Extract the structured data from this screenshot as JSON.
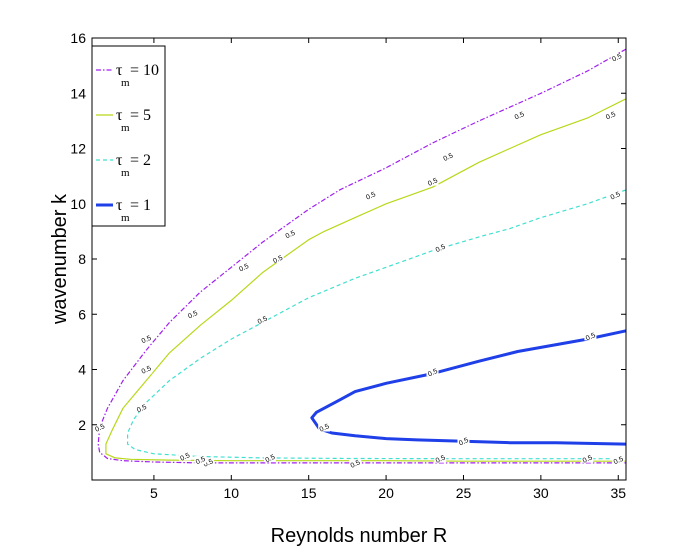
{
  "chart_data": {
    "type": "line",
    "title": "",
    "xlabel": "Reynolds number R",
    "ylabel": "wavenumber k",
    "xlim": [
      1,
      35.5
    ],
    "ylim": [
      0,
      16
    ],
    "xticks": [
      5,
      10,
      15,
      20,
      25,
      30,
      35
    ],
    "yticks": [
      2,
      4,
      6,
      8,
      10,
      12,
      14,
      16
    ],
    "xtick_labels": [
      "5",
      "10",
      "15",
      "20",
      "25",
      "30",
      "35"
    ],
    "ytick_labels": [
      "2",
      "4",
      "6",
      "8",
      "10",
      "12",
      "14",
      "16"
    ],
    "grid": false,
    "legend_position": "top-left",
    "contour_level_label": "0.5",
    "series": [
      {
        "name_main": "τ",
        "name_sub": "m",
        "name_rest": "= 10",
        "color": "#a020f0",
        "style": "dashdot",
        "width": 1.2,
        "x": [
          35.5,
          33,
          30,
          28,
          26,
          23,
          20,
          17,
          15,
          13,
          12,
          10,
          8,
          6,
          4.5,
          3,
          2,
          1.5,
          1.4,
          1.5,
          2,
          3,
          5,
          8,
          12,
          18,
          25,
          30,
          35.5
        ],
        "y": [
          15.6,
          14.8,
          14.0,
          13.5,
          13.0,
          12.2,
          11.3,
          10.5,
          9.8,
          9.0,
          8.6,
          7.7,
          6.8,
          5.7,
          4.7,
          3.6,
          2.6,
          1.9,
          1.3,
          1.0,
          0.78,
          0.7,
          0.65,
          0.62,
          0.62,
          0.62,
          0.62,
          0.62,
          0.62
        ],
        "labels": [
          [
            34.9,
            15.3
          ],
          [
            28.6,
            13.2
          ],
          [
            24.0,
            11.7
          ],
          [
            19.0,
            10.3
          ],
          [
            13.8,
            8.9
          ],
          [
            10.8,
            7.7
          ],
          [
            4.5,
            5.1
          ],
          [
            1.5,
            1.9
          ],
          [
            8.5,
            0.63
          ],
          [
            18.0,
            0.59
          ]
        ]
      },
      {
        "name_main": "τ",
        "name_sub": "m",
        "name_rest": "= 5",
        "color": "#b8d81a",
        "style": "solid",
        "width": 1.2,
        "x": [
          35.5,
          33,
          30,
          28,
          26,
          23,
          20,
          18,
          16,
          15,
          13,
          12,
          10,
          8,
          6,
          4.5,
          3,
          2.3,
          1.9,
          1.9,
          2.5,
          3.5,
          6,
          10,
          15,
          20,
          25,
          30,
          35.5
        ],
        "y": [
          13.8,
          13.1,
          12.5,
          12.0,
          11.5,
          10.6,
          10.0,
          9.5,
          9.0,
          8.7,
          7.9,
          7.5,
          6.5,
          5.6,
          4.6,
          3.6,
          2.6,
          1.8,
          1.3,
          0.95,
          0.8,
          0.75,
          0.72,
          0.7,
          0.7,
          0.7,
          0.68,
          0.68,
          0.68
        ],
        "labels": [
          [
            34.5,
            13.2
          ],
          [
            23.0,
            10.8
          ],
          [
            13.0,
            8.0
          ],
          [
            7.5,
            6.0
          ],
          [
            4.5,
            4.0
          ],
          [
            8.0,
            0.72
          ],
          [
            35.0,
            0.72
          ]
        ]
      },
      {
        "name_main": "τ",
        "name_sub": "m",
        "name_rest": "= 2",
        "color": "#40e0d0",
        "style": "dashed",
        "width": 1.2,
        "x": [
          35.5,
          33,
          30,
          28,
          26,
          23,
          20,
          18,
          15,
          13,
          10,
          8,
          6,
          4.5,
          3.7,
          3.3,
          3.3,
          3.8,
          5,
          8,
          12,
          18,
          25,
          30,
          35.5
        ],
        "y": [
          10.5,
          10.0,
          9.5,
          9.1,
          8.8,
          8.3,
          7.7,
          7.3,
          6.6,
          6.0,
          5.1,
          4.4,
          3.6,
          2.8,
          2.2,
          1.7,
          1.3,
          1.1,
          0.95,
          0.85,
          0.8,
          0.78,
          0.77,
          0.77,
          0.77
        ],
        "labels": [
          [
            34.8,
            10.3
          ],
          [
            23.5,
            8.4
          ],
          [
            12.0,
            5.8
          ],
          [
            4.2,
            2.6
          ],
          [
            7.0,
            0.85
          ],
          [
            12.5,
            0.79
          ],
          [
            23.5,
            0.77
          ],
          [
            33.0,
            0.77
          ]
        ]
      },
      {
        "name_main": "τ",
        "name_sub": "m",
        "name_rest": "= 1",
        "color": "#1f3fe8",
        "style": "solid",
        "width": 3,
        "x": [
          35.5,
          33,
          30,
          28.5,
          26,
          23,
          20,
          18,
          17,
          16,
          15.5,
          15.2,
          15.7,
          16.5,
          18,
          20,
          22,
          25,
          28,
          31,
          35.5
        ],
        "y": [
          5.4,
          5.1,
          4.8,
          4.65,
          4.3,
          3.85,
          3.5,
          3.2,
          2.9,
          2.6,
          2.45,
          2.25,
          1.85,
          1.7,
          1.6,
          1.5,
          1.45,
          1.4,
          1.35,
          1.35,
          1.3
        ],
        "labels": [
          [
            33.2,
            5.2
          ],
          [
            23.0,
            3.9
          ],
          [
            16.0,
            1.9
          ],
          [
            25.0,
            1.4
          ]
        ]
      }
    ]
  }
}
